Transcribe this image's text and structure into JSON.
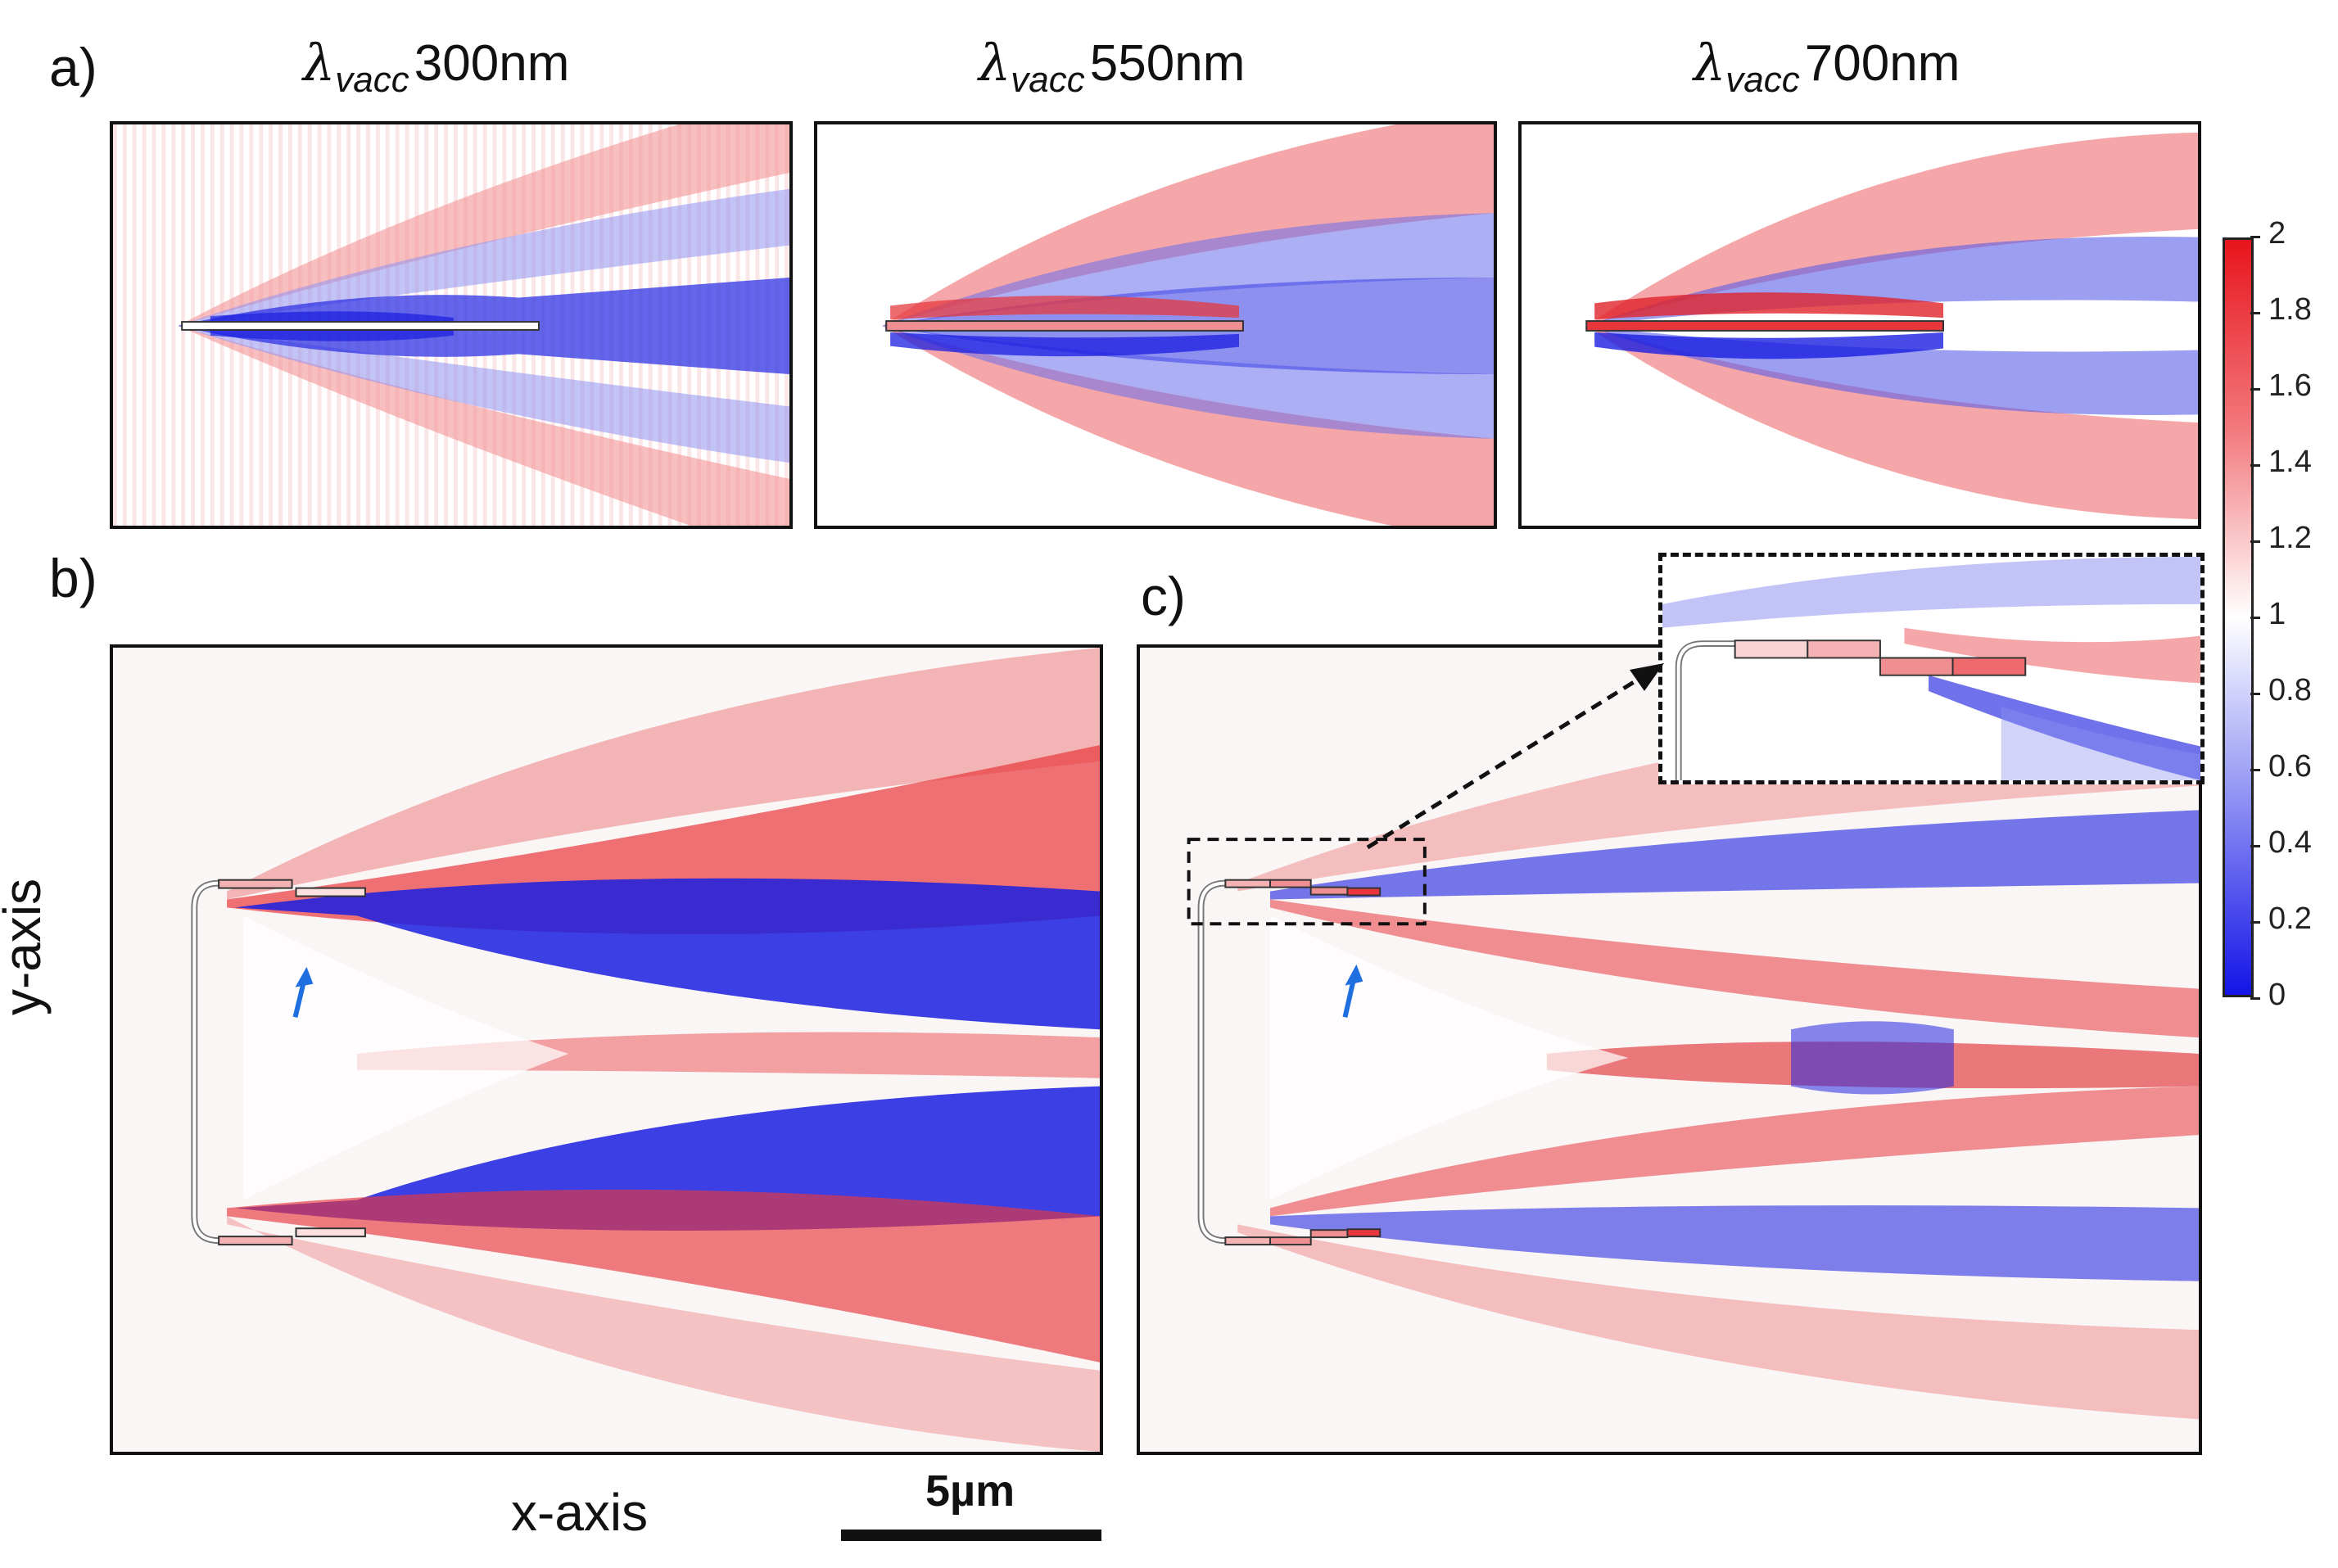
{
  "panel_labels": {
    "a": "a)",
    "b": "b)",
    "c": "c)"
  },
  "titles": [
    {
      "lambda": "λ",
      "sub": "vacc",
      "value": "300nm"
    },
    {
      "lambda": "λ",
      "sub": "vacc",
      "value": "550nm"
    },
    {
      "lambda": "λ",
      "sub": "vacc",
      "value": "700nm"
    }
  ],
  "colorbar": {
    "ticks": [
      "2",
      "1.8",
      "1.6",
      "1.4",
      "1.2",
      "1",
      "0.8",
      "0.6",
      "0.4",
      "0.2",
      "0"
    ],
    "min": 0,
    "max": 2,
    "colors": {
      "high": "#e8141c",
      "mid": "#ffffff",
      "low": "#1414e6"
    }
  },
  "axes": {
    "x": "x-axis",
    "y": "y-axis"
  },
  "scale_bar": {
    "label": "5µm"
  },
  "colors": {
    "field_red": "#e8141c",
    "field_blue": "#1414e6",
    "arrow": "#1f6fe0"
  }
}
